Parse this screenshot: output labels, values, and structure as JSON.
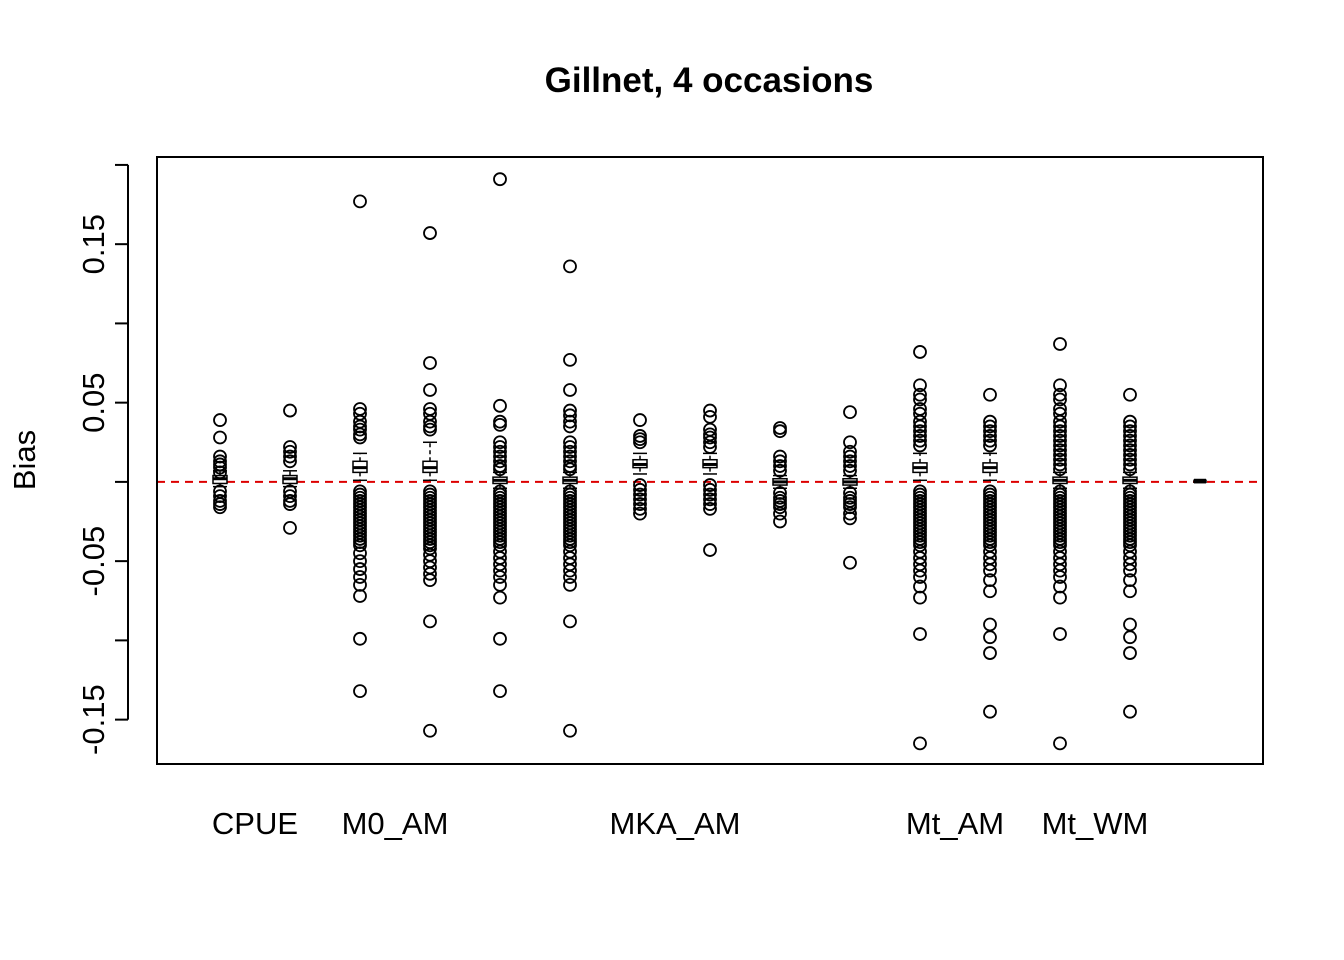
{
  "chart_data": {
    "type": "boxplot",
    "title": "Gillnet, 4 occasions",
    "xlabel": "",
    "ylabel": "Bias",
    "ylim": [
      -0.178,
      0.205
    ],
    "yticks": [
      -0.15,
      -0.05,
      0.05,
      0.15
    ],
    "ytick_labels": [
      "-0.15",
      "-0.05",
      "0.05",
      "0.15"
    ],
    "reference_line": {
      "y": 0.0,
      "color": "#dd0000",
      "style": "dashed"
    },
    "category_labels": [
      {
        "label": "CPUE",
        "center": 1.5
      },
      {
        "label": "M0_AM",
        "center": 3.5
      },
      {
        "label": "MKA_AM",
        "center": 7.5
      },
      {
        "label": "Mt_AM",
        "center": 11.5
      },
      {
        "label": "Mt_WM",
        "center": 13.5
      }
    ],
    "groups": [
      {
        "pos": 1,
        "median": 0.002,
        "q1": -0.001,
        "q3": 0.004,
        "whisker_low": -0.003,
        "whisker_high": 0.007,
        "outliers": [
          0.039,
          0.028,
          0.016,
          0.013,
          0.011,
          0.009,
          0.006,
          -0.006,
          -0.009,
          -0.012,
          -0.014,
          -0.016
        ]
      },
      {
        "pos": 2,
        "median": 0.002,
        "q1": -0.001,
        "q3": 0.004,
        "whisker_low": -0.003,
        "whisker_high": 0.007,
        "outliers": [
          0.045,
          0.022,
          0.019,
          0.016,
          0.013,
          -0.006,
          -0.009,
          -0.012,
          -0.014,
          -0.029
        ]
      },
      {
        "pos": 3,
        "median": 0.009,
        "q1": 0.006,
        "q3": 0.013,
        "whisker_low": 0.001,
        "whisker_high": 0.018,
        "outliers": [
          0.177,
          0.046,
          0.043,
          0.038,
          0.035,
          0.033,
          0.03,
          0.028,
          -0.006,
          -0.008,
          -0.01,
          -0.012,
          -0.014,
          -0.016,
          -0.018,
          -0.02,
          -0.022,
          -0.024,
          -0.026,
          -0.028,
          -0.03,
          -0.032,
          -0.034,
          -0.036,
          -0.038,
          -0.04,
          -0.045,
          -0.05,
          -0.055,
          -0.06,
          -0.065,
          -0.072,
          -0.099,
          -0.132
        ]
      },
      {
        "pos": 4,
        "median": 0.009,
        "q1": 0.006,
        "q3": 0.013,
        "whisker_low": 0.001,
        "whisker_high": 0.025,
        "outliers": [
          0.157,
          0.075,
          0.058,
          0.046,
          0.043,
          0.038,
          0.035,
          0.033,
          -0.006,
          -0.008,
          -0.01,
          -0.012,
          -0.014,
          -0.016,
          -0.018,
          -0.02,
          -0.022,
          -0.024,
          -0.026,
          -0.028,
          -0.03,
          -0.032,
          -0.034,
          -0.036,
          -0.038,
          -0.04,
          -0.042,
          -0.046,
          -0.05,
          -0.054,
          -0.058,
          -0.062,
          -0.088,
          -0.157
        ]
      },
      {
        "pos": 5,
        "median": 0.001,
        "q1": -0.001,
        "q3": 0.003,
        "whisker_low": -0.004,
        "whisker_high": 0.006,
        "outliers": [
          0.191,
          0.048,
          0.038,
          0.036,
          0.025,
          0.022,
          0.019,
          0.016,
          0.013,
          0.01,
          0.008,
          -0.006,
          -0.008,
          -0.01,
          -0.012,
          -0.014,
          -0.016,
          -0.018,
          -0.02,
          -0.022,
          -0.024,
          -0.026,
          -0.028,
          -0.03,
          -0.032,
          -0.034,
          -0.036,
          -0.038,
          -0.04,
          -0.044,
          -0.048,
          -0.052,
          -0.056,
          -0.06,
          -0.065,
          -0.073,
          -0.099,
          -0.132
        ]
      },
      {
        "pos": 6,
        "median": 0.001,
        "q1": -0.001,
        "q3": 0.003,
        "whisker_low": -0.004,
        "whisker_high": 0.006,
        "outliers": [
          0.136,
          0.077,
          0.058,
          0.045,
          0.042,
          0.038,
          0.035,
          0.025,
          0.022,
          0.019,
          0.016,
          0.013,
          0.01,
          0.008,
          -0.006,
          -0.008,
          -0.01,
          -0.012,
          -0.014,
          -0.016,
          -0.018,
          -0.02,
          -0.022,
          -0.024,
          -0.026,
          -0.028,
          -0.03,
          -0.032,
          -0.034,
          -0.036,
          -0.038,
          -0.04,
          -0.044,
          -0.048,
          -0.052,
          -0.056,
          -0.06,
          -0.065,
          -0.088,
          -0.157
        ]
      },
      {
        "pos": 7,
        "median": 0.011,
        "q1": 0.009,
        "q3": 0.014,
        "whisker_low": 0.005,
        "whisker_high": 0.018,
        "outliers": [
          0.039,
          0.029,
          0.027,
          0.025,
          -0.002,
          -0.005,
          -0.008,
          -0.011,
          -0.014,
          -0.017,
          -0.02
        ]
      },
      {
        "pos": 8,
        "median": 0.011,
        "q1": 0.009,
        "q3": 0.014,
        "whisker_low": 0.005,
        "whisker_high": 0.018,
        "outliers": [
          0.045,
          0.041,
          0.033,
          0.03,
          0.028,
          0.025,
          0.022,
          -0.002,
          -0.005,
          -0.008,
          -0.011,
          -0.014,
          -0.017,
          -0.043
        ]
      },
      {
        "pos": 9,
        "median": 0.0,
        "q1": -0.002,
        "q3": 0.002,
        "whisker_low": -0.004,
        "whisker_high": 0.004,
        "outliers": [
          0.034,
          0.032,
          0.016,
          0.013,
          0.01,
          0.007,
          -0.007,
          -0.01,
          -0.012,
          -0.014,
          -0.016,
          -0.02,
          -0.025
        ]
      },
      {
        "pos": 10,
        "median": 0.0,
        "q1": -0.002,
        "q3": 0.002,
        "whisker_low": -0.004,
        "whisker_high": 0.004,
        "outliers": [
          0.044,
          0.025,
          0.019,
          0.016,
          0.013,
          0.01,
          0.007,
          -0.007,
          -0.01,
          -0.012,
          -0.014,
          -0.016,
          -0.02,
          -0.023,
          -0.051
        ]
      },
      {
        "pos": 11,
        "median": 0.009,
        "q1": 0.006,
        "q3": 0.012,
        "whisker_low": 0.001,
        "whisker_high": 0.018,
        "outliers": [
          0.082,
          0.061,
          0.055,
          0.052,
          0.046,
          0.043,
          0.038,
          0.035,
          0.032,
          0.029,
          0.026,
          0.023,
          -0.006,
          -0.008,
          -0.01,
          -0.012,
          -0.014,
          -0.016,
          -0.018,
          -0.02,
          -0.022,
          -0.024,
          -0.026,
          -0.028,
          -0.03,
          -0.032,
          -0.034,
          -0.036,
          -0.038,
          -0.04,
          -0.044,
          -0.048,
          -0.052,
          -0.056,
          -0.06,
          -0.066,
          -0.073,
          -0.096,
          -0.165
        ]
      },
      {
        "pos": 12,
        "median": 0.009,
        "q1": 0.006,
        "q3": 0.012,
        "whisker_low": 0.001,
        "whisker_high": 0.018,
        "outliers": [
          0.055,
          0.038,
          0.035,
          0.032,
          0.029,
          0.026,
          0.023,
          -0.006,
          -0.008,
          -0.01,
          -0.012,
          -0.014,
          -0.016,
          -0.018,
          -0.02,
          -0.022,
          -0.024,
          -0.026,
          -0.028,
          -0.03,
          -0.032,
          -0.034,
          -0.036,
          -0.038,
          -0.04,
          -0.044,
          -0.048,
          -0.052,
          -0.056,
          -0.062,
          -0.069,
          -0.09,
          -0.098,
          -0.108,
          -0.145
        ]
      },
      {
        "pos": 13,
        "median": 0.001,
        "q1": -0.001,
        "q3": 0.003,
        "whisker_low": -0.004,
        "whisker_high": 0.006,
        "outliers": [
          0.087,
          0.061,
          0.055,
          0.052,
          0.046,
          0.043,
          0.038,
          0.035,
          0.032,
          0.029,
          0.026,
          0.023,
          0.02,
          0.017,
          0.014,
          0.011,
          0.008,
          -0.006,
          -0.008,
          -0.01,
          -0.012,
          -0.014,
          -0.016,
          -0.018,
          -0.02,
          -0.022,
          -0.024,
          -0.026,
          -0.028,
          -0.03,
          -0.032,
          -0.034,
          -0.036,
          -0.038,
          -0.04,
          -0.044,
          -0.048,
          -0.052,
          -0.056,
          -0.06,
          -0.066,
          -0.073,
          -0.096,
          -0.165
        ]
      },
      {
        "pos": 14,
        "median": 0.001,
        "q1": -0.001,
        "q3": 0.003,
        "whisker_low": -0.004,
        "whisker_high": 0.006,
        "outliers": [
          0.055,
          0.038,
          0.035,
          0.032,
          0.029,
          0.026,
          0.023,
          0.02,
          0.017,
          0.014,
          0.011,
          0.008,
          -0.006,
          -0.008,
          -0.01,
          -0.012,
          -0.014,
          -0.016,
          -0.018,
          -0.02,
          -0.022,
          -0.024,
          -0.026,
          -0.028,
          -0.03,
          -0.032,
          -0.034,
          -0.036,
          -0.038,
          -0.04,
          -0.044,
          -0.048,
          -0.052,
          -0.056,
          -0.062,
          -0.069,
          -0.09,
          -0.098,
          -0.108,
          -0.145
        ]
      },
      {
        "pos": 15,
        "median": 0.0005,
        "q1": 0.0,
        "q3": 0.001,
        "whisker_low": -0.0005,
        "whisker_high": 0.0015,
        "outliers": []
      }
    ]
  }
}
